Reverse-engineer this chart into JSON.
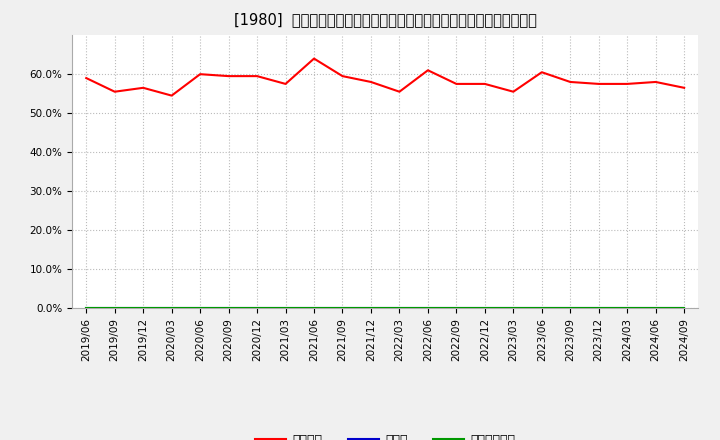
{
  "title": "[1980]  自己資本、のれん、繰延税金資産の総資産に対する比率の推移",
  "x_labels": [
    "2019/06",
    "2019/09",
    "2019/12",
    "2020/03",
    "2020/06",
    "2020/09",
    "2020/12",
    "2021/03",
    "2021/06",
    "2021/09",
    "2021/12",
    "2022/03",
    "2022/06",
    "2022/09",
    "2022/12",
    "2023/03",
    "2023/06",
    "2023/09",
    "2023/12",
    "2024/03",
    "2024/06",
    "2024/09"
  ],
  "jiko_shihon": [
    59.0,
    55.5,
    56.5,
    54.5,
    60.0,
    59.5,
    59.5,
    57.5,
    64.0,
    59.5,
    58.0,
    55.5,
    61.0,
    57.5,
    57.5,
    55.5,
    60.5,
    58.0,
    57.5,
    57.5,
    58.0,
    56.5
  ],
  "noren": [
    0,
    0,
    0,
    0,
    0,
    0,
    0,
    0,
    0,
    0,
    0,
    0,
    0,
    0,
    0,
    0,
    0,
    0,
    0,
    0,
    0,
    0
  ],
  "kurinobe": [
    0,
    0,
    0,
    0,
    0,
    0,
    0,
    0,
    0,
    0,
    0,
    0,
    0,
    0,
    0,
    0,
    0,
    0,
    0,
    0,
    0,
    0
  ],
  "line_colors": [
    "#ff0000",
    "#0000cc",
    "#009900"
  ],
  "legend_labels": [
    "自己資本",
    "のれん",
    "繰延税金資産"
  ],
  "ylim": [
    0,
    70
  ],
  "yticks": [
    0,
    10,
    20,
    30,
    40,
    50,
    60
  ],
  "ytick_labels": [
    "0.0%",
    "10.0%",
    "20.0%",
    "30.0%",
    "40.0%",
    "50.0%",
    "60.0%"
  ],
  "background_color": "#f0f0f0",
  "plot_bg_color": "#ffffff",
  "grid_color": "#bbbbbb",
  "title_fontsize": 10.5,
  "tick_fontsize": 7.5,
  "legend_fontsize": 9
}
